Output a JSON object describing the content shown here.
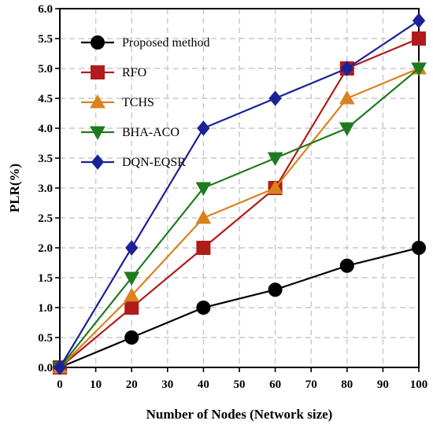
{
  "chart_data": {
    "type": "line",
    "xlabel": "Number of Nodes (Network size)",
    "ylabel": "PLR(%)",
    "xlim": [
      0,
      100
    ],
    "ylim": [
      0,
      6
    ],
    "x_ticks": [
      "0",
      "10",
      "20",
      "30",
      "40",
      "50",
      "60",
      "70",
      "80",
      "90",
      "100"
    ],
    "y_ticks": [
      "0.0",
      "0.5",
      "1.0",
      "1.5",
      "2.0",
      "2.5",
      "3.0",
      "3.5",
      "4.0",
      "4.5",
      "5.0",
      "5.5",
      "6.0"
    ],
    "grid": true,
    "legend_position": "top-left",
    "x": [
      0,
      20,
      40,
      60,
      80,
      100
    ],
    "series": [
      {
        "name": "Proposed method",
        "values": [
          0,
          0.5,
          1.0,
          1.3,
          1.7,
          2.0
        ],
        "color": "#000000",
        "marker": "circle"
      },
      {
        "name": "RFO",
        "values": [
          0,
          1.0,
          2.0,
          3.0,
          5.0,
          5.5
        ],
        "color": "#b01c1c",
        "marker": "square"
      },
      {
        "name": "TCHS",
        "values": [
          0,
          1.2,
          2.5,
          3.0,
          4.5,
          5.0
        ],
        "color": "#d9821e",
        "marker": "triangle-up"
      },
      {
        "name": "BHA-ACO",
        "values": [
          0,
          1.5,
          3.0,
          3.5,
          4.0,
          5.0
        ],
        "color": "#1e7a1e",
        "marker": "triangle-down"
      },
      {
        "name": "DQN-EQSR",
        "values": [
          0,
          2.0,
          4.0,
          4.5,
          5.0,
          5.8
        ],
        "color": "#1c2296",
        "marker": "diamond"
      }
    ]
  }
}
